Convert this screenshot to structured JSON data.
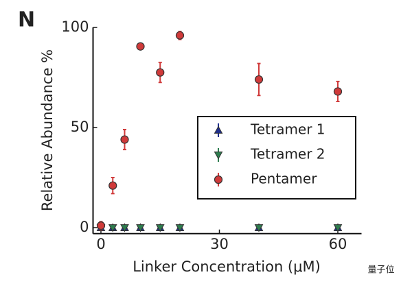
{
  "panel_label": "N",
  "watermark": "量子位",
  "chart_data": {
    "type": "scatter",
    "x_label": "Linker Concentration (μM)",
    "y_label": "Relative Abundance %",
    "xlim": [
      -2,
      66
    ],
    "xticks": [
      0,
      30,
      60
    ],
    "ylim": [
      -3,
      100
    ],
    "yticks": [
      0,
      50,
      100
    ],
    "grid": false,
    "legend": "center right",
    "series": [
      {
        "name": "Tetramer 1",
        "color": "#1f2f8f",
        "marker": "^",
        "x": [
          0,
          3,
          6,
          10,
          15,
          20,
          40,
          60
        ],
        "values": [
          0,
          0,
          0,
          0,
          0,
          0,
          0,
          0
        ],
        "errors": [
          1,
          0.5,
          0.5,
          0.5,
          0.5,
          0.5,
          0.5,
          0.5
        ]
      },
      {
        "name": "Tetramer 2",
        "color": "#2e7d4f",
        "marker": "v",
        "x": [
          0,
          3,
          6,
          10,
          15,
          20,
          40,
          60
        ],
        "values": [
          0,
          0,
          0,
          0,
          0,
          0,
          0,
          0
        ],
        "errors": [
          1,
          0.5,
          0.5,
          0.5,
          0.5,
          0.5,
          0.5,
          0.5
        ]
      },
      {
        "name": "Pentamer",
        "color": "#d03a3a",
        "marker": "o",
        "x": [
          0,
          3,
          6,
          10,
          15,
          20,
          40,
          60
        ],
        "values": [
          1,
          21,
          44,
          90.5,
          77.5,
          96,
          74,
          68
        ],
        "errors": [
          2,
          4,
          5,
          1.5,
          5,
          2,
          8,
          5
        ]
      }
    ]
  }
}
